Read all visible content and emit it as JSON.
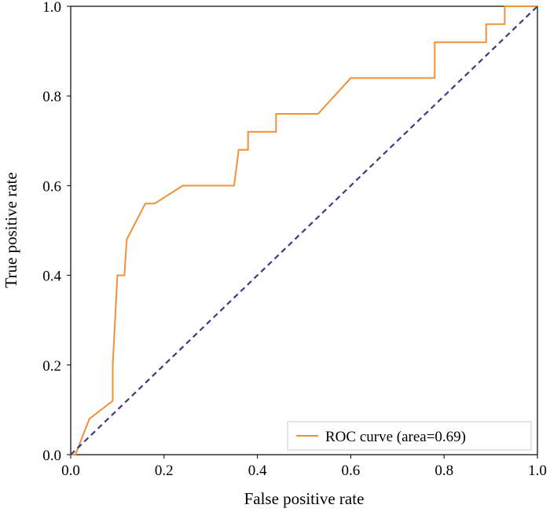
{
  "chart_data": {
    "type": "line",
    "title": "",
    "xlabel": "False positive rate",
    "ylabel": "True positive rate",
    "xlim": [
      0.0,
      1.0
    ],
    "ylim": [
      0.0,
      1.0
    ],
    "xticks": [
      "0.0",
      "0.2",
      "0.4",
      "0.6",
      "0.8",
      "1.0"
    ],
    "yticks": [
      "0.0",
      "0.2",
      "0.4",
      "0.6",
      "0.8",
      "1.0"
    ],
    "grid": false,
    "legend_position": "bottom-right",
    "series": [
      {
        "name": "ROC curve (area=0.69)",
        "style": "solid",
        "color": "#F0913A",
        "x": [
          0.0,
          0.01,
          0.04,
          0.09,
          0.09,
          0.1,
          0.11,
          0.115,
          0.12,
          0.16,
          0.18,
          0.24,
          0.35,
          0.36,
          0.38,
          0.38,
          0.39,
          0.43,
          0.44,
          0.44,
          0.53,
          0.6,
          0.78,
          0.78,
          0.89,
          0.89,
          0.93,
          0.93,
          1.0
        ],
        "y": [
          0.0,
          0.0,
          0.08,
          0.12,
          0.2,
          0.4,
          0.4,
          0.4,
          0.48,
          0.56,
          0.56,
          0.6,
          0.6,
          0.68,
          0.68,
          0.72,
          0.72,
          0.72,
          0.72,
          0.76,
          0.76,
          0.84,
          0.84,
          0.92,
          0.92,
          0.96,
          0.96,
          1.0,
          1.0
        ]
      },
      {
        "name": "",
        "style": "dashed",
        "color": "#3B3B82",
        "x": [
          0.0,
          1.0
        ],
        "y": [
          0.0,
          1.0
        ]
      }
    ]
  }
}
